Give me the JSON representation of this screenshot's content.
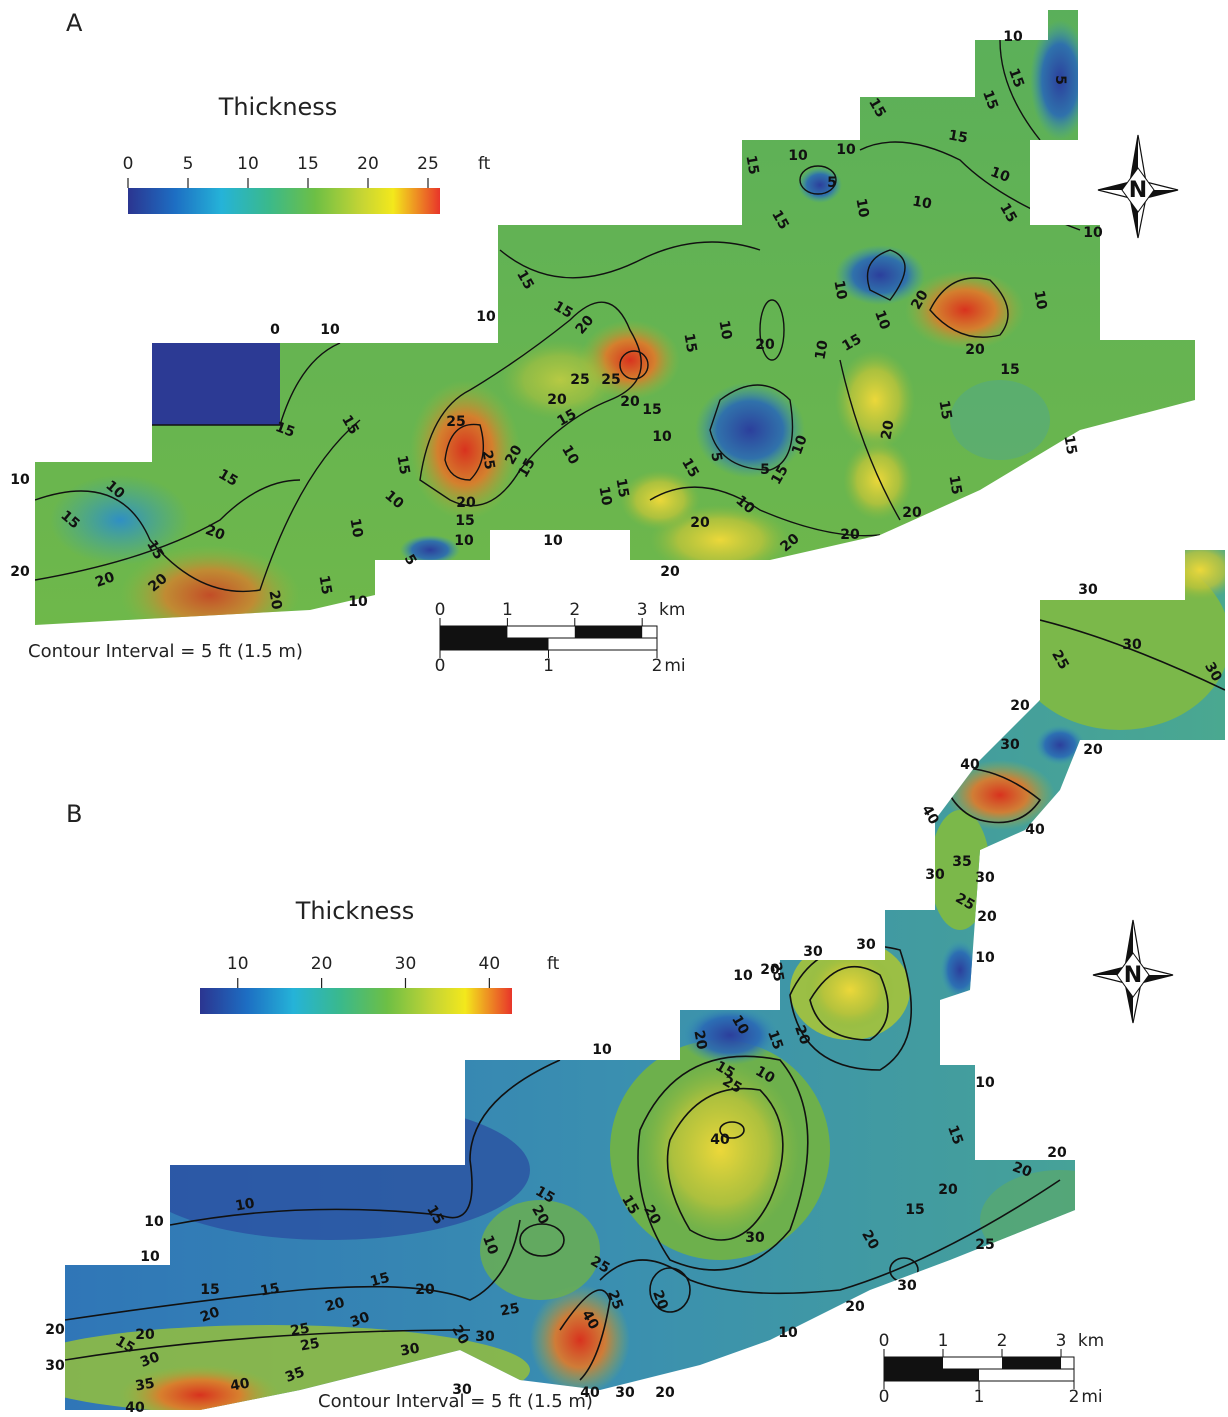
{
  "panels": [
    {
      "label": "A",
      "title": "Thickness",
      "unit": "ft",
      "colorbar": {
        "lim": [
          0,
          26
        ],
        "ticks": [
          0,
          5,
          10,
          15,
          20,
          25
        ]
      },
      "contour_interval": "Contour Interval = 5 ft (1.5 m)",
      "scale": {
        "km": {
          "unit": "km",
          "lim": [
            0,
            3.22
          ],
          "ticks": [
            0,
            1,
            2,
            3
          ]
        },
        "mi": {
          "unit": "mi",
          "lim": [
            0,
            2
          ],
          "ticks": [
            0,
            1,
            2
          ]
        }
      },
      "north": "N",
      "contour_labels": [
        10,
        15,
        5,
        15,
        15,
        15,
        10,
        10,
        10,
        5,
        15,
        10,
        10,
        15,
        15,
        10,
        20,
        15,
        10,
        10,
        15,
        15,
        20,
        25,
        20,
        15,
        10,
        10,
        10,
        20,
        10,
        0,
        10,
        20,
        15,
        15,
        15,
        10,
        15,
        15,
        20,
        20,
        20,
        20,
        15,
        10,
        5,
        10,
        10,
        15,
        25,
        20,
        15,
        10,
        25,
        20,
        15,
        10,
        15,
        20,
        25,
        20,
        15,
        10,
        10,
        15,
        20,
        20,
        20,
        5,
        10,
        15,
        10,
        5,
        15,
        10,
        20,
        20,
        15,
        15,
        15,
        20,
        15,
        10
      ]
    },
    {
      "label": "B",
      "title": "Thickness",
      "unit": "ft",
      "colorbar": {
        "lim": [
          5.5,
          42.7
        ],
        "ticks": [
          10,
          20,
          30,
          40
        ]
      },
      "contour_interval": "Contour Interval = 5 ft (1.5 m)",
      "scale": {
        "km": {
          "unit": "km",
          "lim": [
            0,
            3.22
          ],
          "ticks": [
            0,
            1,
            2,
            3
          ]
        },
        "mi": {
          "unit": "mi",
          "lim": [
            0,
            2
          ],
          "ticks": [
            0,
            1,
            2
          ]
        }
      },
      "north": "N",
      "contour_labels": [
        30,
        30,
        30,
        25,
        20,
        30,
        20,
        40,
        40,
        40,
        35,
        30,
        30,
        25,
        20,
        10,
        30,
        30,
        25,
        20,
        10,
        10,
        15,
        20,
        20,
        15,
        10,
        25,
        10,
        10,
        15,
        40,
        30,
        20,
        20,
        20,
        25,
        15,
        20,
        30,
        20,
        10,
        10,
        10,
        10,
        10,
        15,
        15,
        15,
        15,
        20,
        20,
        20,
        20,
        25,
        40,
        25,
        20,
        30,
        40,
        15,
        20,
        30,
        35,
        40,
        20,
        25,
        30,
        20,
        25,
        30,
        35,
        20,
        25,
        30,
        30,
        40,
        30,
        20,
        15,
        15
      ]
    }
  ]
}
